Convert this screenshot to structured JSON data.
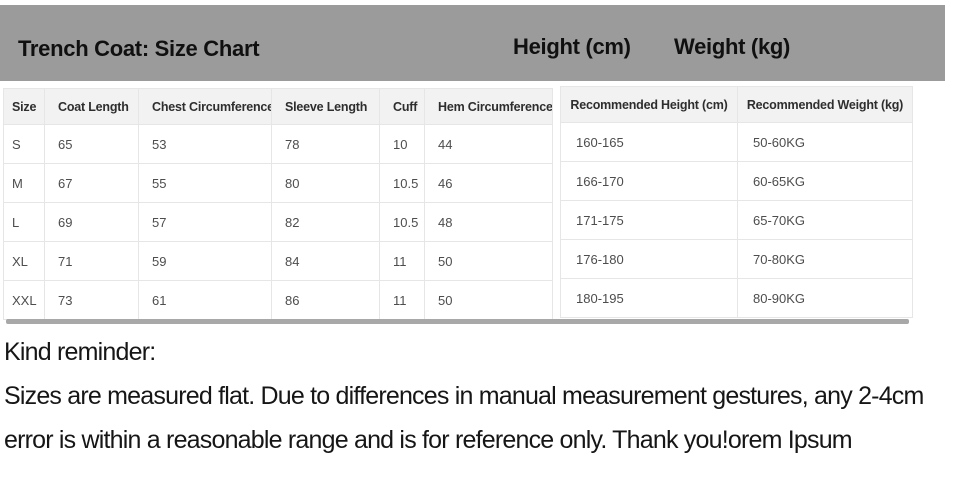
{
  "banner": {
    "title": "Trench Coat: Size Chart",
    "height_label": "Height (cm)",
    "weight_label": "Weight (kg)",
    "bg_color": "#9b9b9b"
  },
  "size_table": {
    "headers": [
      "Size",
      "Coat Length",
      "Chest Circumference",
      "Sleeve Length",
      "Cuff",
      "Hem Circumference"
    ],
    "rows": [
      [
        "S",
        "65",
        "53",
        "78",
        "10",
        "44"
      ],
      [
        "M",
        "67",
        "55",
        "80",
        "10.5",
        "46"
      ],
      [
        "L",
        "69",
        "57",
        "82",
        "10.5",
        "48"
      ],
      [
        "XL",
        "71",
        "59",
        "84",
        "11",
        "50"
      ],
      [
        "XXL",
        "73",
        "61",
        "86",
        "11",
        "50"
      ]
    ]
  },
  "recommendation_table": {
    "headers": [
      "Recommended Height (cm)",
      "Recommended Weight (kg)"
    ],
    "rows": [
      [
        "160-165",
        "50-60KG"
      ],
      [
        "166-170",
        "60-65KG"
      ],
      [
        "171-175",
        "65-70KG"
      ],
      [
        "176-180",
        "70-80KG"
      ],
      [
        "180-195",
        "80-90KG"
      ]
    ]
  },
  "reminder": {
    "heading": "Kind reminder:",
    "body_lines": [
      "Sizes are measured flat. Due to differences in manual measurement gestures, any 2-4cm",
      "error is within a reasonable range and is for reference only. Thank you!orem Ipsum"
    ]
  },
  "colors": {
    "header_row_bg": "#f2f2f2",
    "divider_bar": "#a8a8a8",
    "table_border": "#e6e6e6"
  }
}
